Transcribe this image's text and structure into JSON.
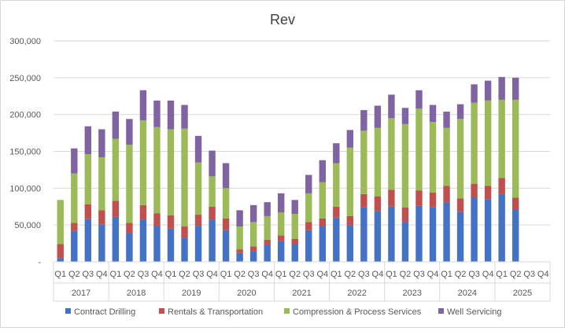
{
  "chart_data": {
    "type": "bar",
    "stacked": true,
    "title": "Rev",
    "xlabel": "",
    "ylabel": "",
    "ylim": [
      0,
      300000
    ],
    "yticks": [
      "-",
      "50,000",
      "100,000",
      "150,000",
      "200,000",
      "250,000",
      "300,000"
    ],
    "ytick_values": [
      0,
      50000,
      100000,
      150000,
      200000,
      250000,
      300000
    ],
    "grid": true,
    "legend_position": "bottom",
    "quarters": [
      "Q1",
      "Q2",
      "Q3",
      "Q4",
      "Q1",
      "Q2",
      "Q3",
      "Q4",
      "Q1",
      "Q2",
      "Q3",
      "Q4",
      "Q1",
      "Q2",
      "Q3",
      "Q4",
      "Q1",
      "Q2",
      "Q3",
      "Q4",
      "Q1",
      "Q2",
      "Q3",
      "Q4",
      "Q1",
      "Q2",
      "Q3",
      "Q4",
      "Q1",
      "Q2",
      "Q3",
      "Q4",
      "Q1",
      "Q2",
      "Q3",
      "Q4"
    ],
    "years": [
      "2017",
      "2018",
      "2019",
      "2020",
      "2021",
      "2022",
      "2023",
      "2024",
      "2025"
    ],
    "series": [
      {
        "name": "Contract Drilling",
        "color": "#4472c4",
        "values": [
          5000,
          42000,
          58000,
          51000,
          61000,
          39000,
          57000,
          48000,
          45000,
          33000,
          49000,
          57000,
          43000,
          12000,
          14000,
          23000,
          28000,
          24000,
          43000,
          48000,
          60000,
          50000,
          74000,
          69000,
          75000,
          54000,
          76000,
          74000,
          81000,
          68000,
          87000,
          85000,
          92000,
          71000,
          0,
          0
        ]
      },
      {
        "name": "Rentals & Transportation",
        "color": "#c0504d",
        "values": [
          19000,
          11000,
          20000,
          19000,
          22000,
          14000,
          20000,
          18000,
          18000,
          15000,
          15000,
          18000,
          16000,
          5000,
          7000,
          7000,
          8000,
          7000,
          11000,
          11000,
          15000,
          12000,
          18000,
          20000,
          23000,
          20000,
          21000,
          20000,
          22000,
          18000,
          19000,
          18000,
          22000,
          16000,
          0,
          0
        ]
      },
      {
        "name": "Compression & Process Services",
        "color": "#9bbb59",
        "values": [
          60000,
          67000,
          68000,
          72000,
          84000,
          106000,
          115000,
          117000,
          117000,
          133000,
          71000,
          41000,
          41000,
          31000,
          33000,
          32000,
          31000,
          34000,
          39000,
          49000,
          59000,
          93000,
          86000,
          93000,
          97000,
          113000,
          111000,
          96000,
          79000,
          108000,
          110000,
          116000,
          106000,
          133000,
          0,
          0
        ]
      },
      {
        "name": "Well Servicing",
        "color": "#8064a2",
        "values": [
          0,
          34000,
          38000,
          38000,
          37000,
          35000,
          41000,
          36000,
          39000,
          32000,
          36000,
          35000,
          34000,
          22000,
          23000,
          19000,
          26000,
          19000,
          25000,
          30000,
          27000,
          24000,
          28000,
          30000,
          32000,
          22000,
          25000,
          23000,
          22000,
          20000,
          25000,
          27000,
          31000,
          30000,
          0,
          0
        ]
      }
    ]
  }
}
